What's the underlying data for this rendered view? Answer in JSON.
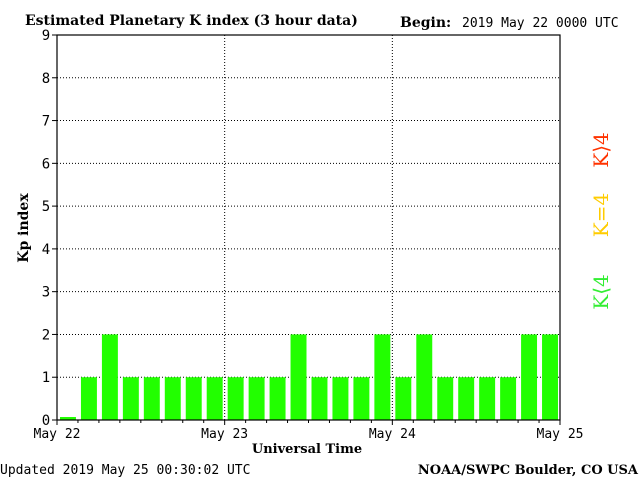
{
  "header": {
    "title": "Estimated Planetary K index (3 hour data)",
    "begin_label": "Begin:",
    "begin_value": "2019 May 22 0000 UTC"
  },
  "footer": {
    "updated": "Updated 2019 May 25 00:30:02 UTC",
    "source": "NOAA/SWPC Boulder, CO USA"
  },
  "legend": {
    "above": {
      "label": "K⟩4",
      "color": "#ff3300"
    },
    "equal": {
      "label": "K=4",
      "color": "#ffcc00"
    },
    "below": {
      "label": "K⟨4",
      "color": "#33ee33"
    }
  },
  "chart_data": {
    "type": "bar",
    "title": "Estimated Planetary K index (3 hour data)",
    "xlabel": "Universal Time",
    "ylabel": "Kp index",
    "ylim": [
      0,
      9
    ],
    "yticks": [
      0,
      1,
      2,
      3,
      4,
      5,
      6,
      7,
      8,
      9
    ],
    "xticks": [
      "May 22",
      "May 23",
      "May 24",
      "May 25"
    ],
    "bar_color": "#22ff00",
    "grid": true,
    "series": [
      {
        "values": [
          0.07,
          1,
          2,
          1,
          1,
          1,
          1,
          1,
          1,
          1,
          1,
          2,
          1,
          1,
          1,
          2,
          1,
          2,
          1,
          1,
          1,
          1,
          2,
          2
        ]
      }
    ]
  }
}
